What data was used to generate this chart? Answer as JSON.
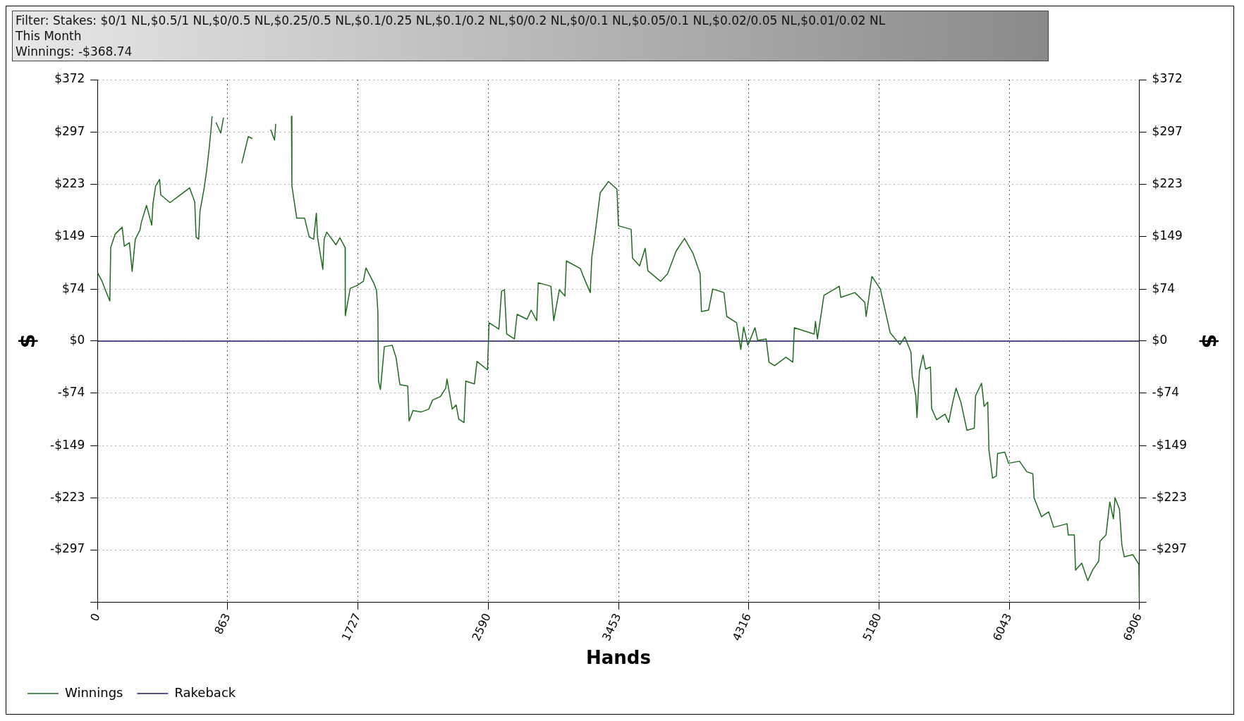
{
  "chart_data": {
    "type": "line",
    "title": "Filter: Stakes: $0/1 NL,$0.5/1 NL,$0/0.5 NL,$0.25/0.5 NL,$0.1/0.25 NL,$0.1/0.2 NL,$0/0.2 NL,$0/0.1 NL,$0.05/0.1 NL,$0.02/0.05 NL,$0.01/0.02 NL",
    "subtitle": "This Month",
    "annotations": [
      "Winnings: -$368.74"
    ],
    "xlabel": "Hands",
    "ylabel": "$",
    "y2label": "$",
    "xlim": [
      0,
      6906
    ],
    "xticks": [
      0,
      863,
      1727,
      2590,
      3453,
      4316,
      5180,
      6043,
      6906
    ],
    "ylim": [
      -372,
      372
    ],
    "yticks": [
      {
        "value": 372,
        "label": "$372"
      },
      {
        "value": 297,
        "label": "$297"
      },
      {
        "value": 223,
        "label": "$223"
      },
      {
        "value": 149,
        "label": "$149"
      },
      {
        "value": 74,
        "label": "$74"
      },
      {
        "value": 0,
        "label": "$0"
      },
      {
        "value": -74,
        "label": "-$74"
      },
      {
        "value": -149,
        "label": "-$149"
      },
      {
        "value": -223,
        "label": "-$223"
      },
      {
        "value": -297,
        "label": "-$297"
      },
      {
        "value": -372,
        "label": null
      }
    ],
    "y2lim": [
      -372,
      372
    ],
    "y2ticks": [
      {
        "value": 372,
        "label": "$372"
      },
      {
        "value": 297,
        "label": "$297"
      },
      {
        "value": 223,
        "label": "$223"
      },
      {
        "value": 149,
        "label": "$149"
      },
      {
        "value": 74,
        "label": "$74"
      },
      {
        "value": 0,
        "label": "$0"
      },
      {
        "value": -74,
        "label": "-$74"
      },
      {
        "value": -149,
        "label": "-$149"
      },
      {
        "value": -223,
        "label": "-$223"
      },
      {
        "value": -297,
        "label": "-$297"
      },
      {
        "value": -372,
        "label": null
      }
    ],
    "grid": true,
    "legend": "bottom",
    "marker": "none",
    "line_style": "solid",
    "series": [
      {
        "name": "Winnings",
        "color": "#1e6b1e",
        "x": [
          0,
          30,
          47,
          81,
          87,
          116,
          163,
          177,
          211,
          229,
          250,
          281,
          289,
          324,
          359,
          367,
          385,
          411,
          419,
          480,
          610,
          644,
          653,
          670,
          679,
          705,
          722,
          740,
          752,
          759,
          772,
          785,
          816,
          835,
          890,
          956,
          999,
          1026,
          1080,
          1147,
          1173,
          1181,
          1230,
          1285,
          1288,
          1306,
          1320,
          1372,
          1403,
          1432,
          1450,
          1458,
          1493,
          1502,
          1519,
          1580,
          1606,
          1641,
          1642,
          1675,
          1719,
          1762,
          1779,
          1832,
          1849,
          1858,
          1862,
          1875,
          1901,
          1953,
          1979,
          2004,
          2056,
          2065,
          2091,
          2143,
          2195,
          2221,
          2273,
          2308,
          2316,
          2351,
          2377,
          2394,
          2429,
          2441,
          2498,
          2515,
          2585,
          2595,
          2660,
          2678,
          2697,
          2712,
          2763,
          2781,
          2847,
          2874,
          2911,
          2921,
          3005,
          3024,
          3061,
          3098,
          3108,
          3201,
          3220,
          3266,
          3276,
          3294,
          3332,
          3387,
          3443,
          3453,
          3537,
          3546,
          3593,
          3630,
          3648,
          3732,
          3779,
          3835,
          3891,
          3947,
          3994,
          4003,
          4050,
          4078,
          4152,
          4171,
          4236,
          4264,
          4283,
          4311,
          4358,
          4376,
          4432,
          4451,
          4488,
          4563,
          4609,
          4619,
          4750,
          4759,
          4772,
          4815,
          4917,
          4927,
          5020,
          5086,
          5095,
          5133,
          5189,
          5254,
          5319,
          5351,
          5392,
          5400,
          5424,
          5432,
          5448,
          5472,
          5489,
          5521,
          5529,
          5562,
          5618,
          5642,
          5666,
          5691,
          5723,
          5763,
          5812,
          5820,
          5860,
          5877,
          5901,
          5909,
          5933,
          5958,
          5966,
          6014,
          6039,
          6111,
          6160,
          6200,
          6208,
          6257,
          6305,
          6338,
          6427,
          6435,
          6475,
          6483,
          6524,
          6564,
          6596,
          6637,
          6645,
          6685,
          6710,
          6734,
          6745,
          6774,
          6790,
          6806,
          6863,
          6903,
          6906
        ],
        "values": [
          97,
          85,
          75,
          57,
          133,
          152,
          162,
          135,
          140,
          99,
          145,
          158,
          168,
          193,
          165,
          195,
          221,
          230,
          208,
          197,
          218,
          198,
          148,
          145,
          185,
          216,
          241,
          275,
          301,
          320,
          null,
          311,
          296,
          318,
          null,
          253,
          291,
          288,
          null,
          301,
          286,
          309,
          null,
          320,
          221,
          195,
          175,
          175,
          148,
          145,
          182,
          148,
          102,
          145,
          155,
          137,
          147,
          133,
          36,
          75,
          79,
          85,
          104,
          82,
          72,
          42,
          -57,
          -69,
          -8,
          -6,
          -24,
          -62,
          -64,
          -114,
          -99,
          -101,
          -97,
          -84,
          -79,
          -67,
          -54,
          -97,
          -91,
          -111,
          -116,
          -57,
          -61,
          -29,
          -41,
          26,
          17,
          71,
          73,
          10,
          3,
          38,
          31,
          44,
          29,
          83,
          78,
          29,
          73,
          64,
          114,
          103,
          92,
          69,
          119,
          146,
          211,
          227,
          216,
          164,
          159,
          118,
          107,
          132,
          100,
          85,
          96,
          128,
          146,
          125,
          96,
          42,
          44,
          74,
          69,
          35,
          26,
          -12,
          20,
          -6,
          19,
          1,
          3,
          -30,
          -35,
          -23,
          -30,
          19,
          10,
          28,
          3,
          65,
          78,
          62,
          69,
          55,
          35,
          92,
          74,
          12,
          -5,
          6,
          -16,
          -50,
          -78,
          -109,
          -43,
          -20,
          -40,
          -37,
          -96,
          -112,
          -104,
          -116,
          -90,
          -67,
          -87,
          -127,
          -124,
          -78,
          -60,
          -93,
          -87,
          -155,
          -195,
          -192,
          -160,
          -158,
          -174,
          -171,
          -186,
          -189,
          -223,
          -250,
          -243,
          -265,
          -260,
          -276,
          -276,
          -326,
          -316,
          -341,
          -326,
          -313,
          -285,
          -276,
          -229,
          -253,
          -223,
          -239,
          -290,
          -307,
          -304,
          -318,
          -369
        ]
      },
      {
        "name": "Rakeback",
        "color": "#1a1a5e",
        "x": [
          0,
          6906
        ],
        "values": [
          0,
          0
        ]
      }
    ]
  }
}
